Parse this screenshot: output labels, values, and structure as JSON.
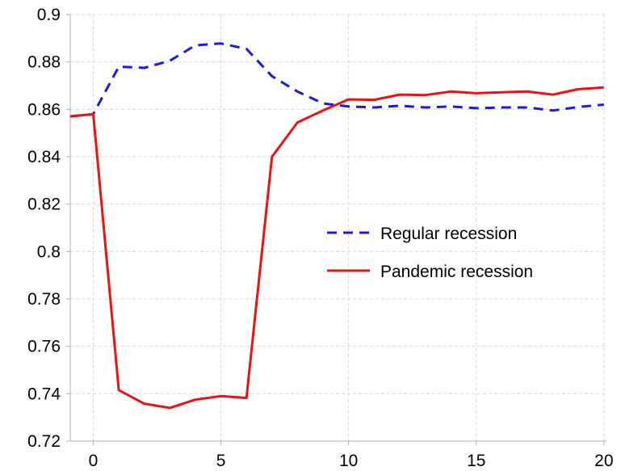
{
  "chart_data": {
    "type": "line",
    "title": "",
    "xlabel": "",
    "ylabel": "",
    "xlim": [
      -0.9,
      20.1
    ],
    "ylim": [
      0.72,
      0.9
    ],
    "xticks": [
      0,
      5,
      10,
      15,
      20
    ],
    "xtick_labels": [
      "0",
      "5",
      "10",
      "15",
      "20"
    ],
    "yticks": [
      0.72,
      0.74,
      0.76,
      0.78,
      0.8,
      0.82,
      0.84,
      0.86,
      0.88,
      0.9
    ],
    "ytick_labels": [
      "0.72",
      "0.74",
      "0.76",
      "0.78",
      "0.8",
      "0.82",
      "0.84",
      "0.86",
      "0.88",
      "0.9"
    ],
    "grid": true,
    "legend_position": "center-right",
    "series": [
      {
        "name": "Regular recession",
        "color": "#1a1aee",
        "style": "dashed",
        "x": [
          -1,
          0,
          1,
          2,
          3,
          4,
          5,
          6,
          7,
          8,
          9,
          10,
          11,
          12,
          13,
          14,
          15,
          16,
          17,
          18,
          19,
          20
        ],
        "y": [
          0.857,
          0.858,
          0.878,
          0.8775,
          0.8805,
          0.887,
          0.8878,
          0.8855,
          0.874,
          0.8675,
          0.8625,
          0.8612,
          0.8608,
          0.8615,
          0.8608,
          0.8612,
          0.8605,
          0.8608,
          0.8608,
          0.8595,
          0.861,
          0.862
        ]
      },
      {
        "name": "Pandemic recession",
        "color": "#ee1111",
        "style": "solid",
        "x": [
          -1,
          0,
          1,
          2,
          3,
          4,
          5,
          6,
          7,
          8,
          9,
          10,
          11,
          12,
          13,
          14,
          15,
          16,
          17,
          18,
          19,
          20
        ],
        "y": [
          0.857,
          0.858,
          0.7415,
          0.7358,
          0.734,
          0.7375,
          0.739,
          0.7382,
          0.84,
          0.8545,
          0.8595,
          0.8642,
          0.864,
          0.8662,
          0.866,
          0.8675,
          0.8668,
          0.8672,
          0.8675,
          0.8662,
          0.8685,
          0.8692
        ]
      }
    ]
  }
}
